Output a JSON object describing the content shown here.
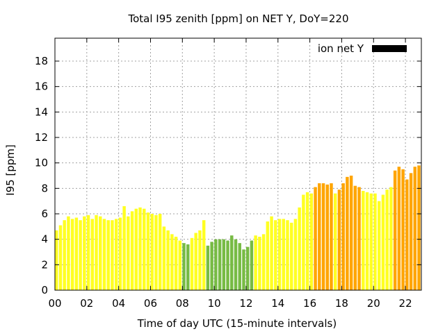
{
  "chart_data": {
    "type": "bar",
    "title": "Total I95 zenith [ppm] on NET Y, DoY=220",
    "xlabel": "Time of day UTC (15-minute intervals)",
    "ylabel": "I95 [ppm]",
    "xlim": [
      0,
      23
    ],
    "ylim": [
      0,
      19.8
    ],
    "x_ticks": [
      "00",
      "02",
      "04",
      "06",
      "08",
      "10",
      "12",
      "14",
      "16",
      "18",
      "20",
      "22"
    ],
    "y_ticks": [
      "0",
      "2",
      "4",
      "6",
      "8",
      "10",
      "12",
      "14",
      "16",
      "18"
    ],
    "grid": true,
    "legend": {
      "placement": "top-right",
      "entries": [
        {
          "label": "ion net Y",
          "color": "#000000"
        }
      ]
    },
    "colors": {
      "low": "#77bb44",
      "medium": "#ffff22",
      "high": "#ffa500"
    },
    "bin_hours": 0.25,
    "series": [
      {
        "name": "ion net Y",
        "start_hour": 0,
        "values": [
          4.7,
          5.1,
          5.5,
          5.8,
          5.6,
          5.7,
          5.5,
          5.8,
          5.9,
          5.6,
          5.9,
          5.8,
          5.6,
          5.5,
          5.5,
          5.6,
          5.7,
          6.6,
          5.8,
          6.2,
          6.4,
          6.5,
          6.4,
          6.1,
          6.0,
          5.9,
          6.0,
          5.0,
          4.7,
          4.4,
          4.2,
          3.9,
          3.7,
          3.6,
          4.1,
          4.5,
          4.7,
          5.5,
          3.5,
          3.8,
          4.0,
          4.0,
          4.0,
          3.9,
          4.3,
          4.0,
          3.7,
          3.2,
          3.4,
          3.9,
          4.3,
          4.2,
          4.4,
          5.4,
          5.8,
          5.5,
          5.6,
          5.6,
          5.5,
          5.3,
          5.6,
          6.5,
          7.5,
          7.7,
          7.6,
          8.1,
          8.4,
          8.4,
          8.3,
          8.4,
          7.6,
          7.9,
          8.4,
          8.9,
          9.0,
          8.2,
          8.1,
          7.8,
          7.7,
          7.6,
          7.6,
          7.0,
          7.5,
          7.9,
          8.1,
          9.4,
          9.7,
          9.5,
          8.7,
          9.2,
          9.7,
          9.8
        ],
        "levels": [
          "medium",
          "medium",
          "medium",
          "medium",
          "medium",
          "medium",
          "medium",
          "medium",
          "medium",
          "medium",
          "medium",
          "medium",
          "medium",
          "medium",
          "medium",
          "medium",
          "medium",
          "medium",
          "medium",
          "medium",
          "medium",
          "medium",
          "medium",
          "medium",
          "medium",
          "medium",
          "medium",
          "medium",
          "medium",
          "medium",
          "medium",
          "medium",
          "low",
          "low",
          "medium",
          "medium",
          "medium",
          "medium",
          "low",
          "low",
          "low",
          "low",
          "low",
          "low",
          "low",
          "low",
          "low",
          "low",
          "low",
          "low",
          "medium",
          "medium",
          "medium",
          "medium",
          "medium",
          "medium",
          "medium",
          "medium",
          "medium",
          "medium",
          "medium",
          "medium",
          "medium",
          "medium",
          "medium",
          "high",
          "high",
          "high",
          "high",
          "high",
          "medium",
          "high",
          "high",
          "high",
          "high",
          "high",
          "high",
          "medium",
          "medium",
          "medium",
          "medium",
          "medium",
          "medium",
          "medium",
          "medium",
          "high",
          "high",
          "high",
          "high",
          "high",
          "high",
          "high"
        ]
      }
    ]
  }
}
